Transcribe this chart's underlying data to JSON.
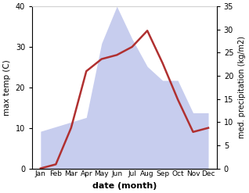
{
  "months": [
    "Jan",
    "Feb",
    "Mar",
    "Apr",
    "May",
    "Jun",
    "Jul",
    "Aug",
    "Sep",
    "Oct",
    "Nov",
    "Dec"
  ],
  "temperature": [
    0,
    1,
    10,
    24,
    27,
    28,
    30,
    34,
    26,
    17,
    9,
    10
  ],
  "precipitation": [
    8,
    9,
    10,
    11,
    27,
    35,
    28,
    22,
    19,
    19,
    12,
    12
  ],
  "temp_color": "#b03030",
  "precip_fill_color": "#b0b8e8",
  "xlabel": "date (month)",
  "ylabel_left": "max temp (C)",
  "ylabel_right": "med. precipitation (kg/m2)",
  "ylim_left": [
    0,
    40
  ],
  "ylim_right": [
    0,
    35
  ],
  "temp_linewidth": 1.8,
  "bg_color": "#ffffff",
  "yticks_left": [
    0,
    10,
    20,
    30,
    40
  ],
  "yticks_right": [
    0,
    5,
    10,
    15,
    20,
    25,
    30,
    35
  ]
}
